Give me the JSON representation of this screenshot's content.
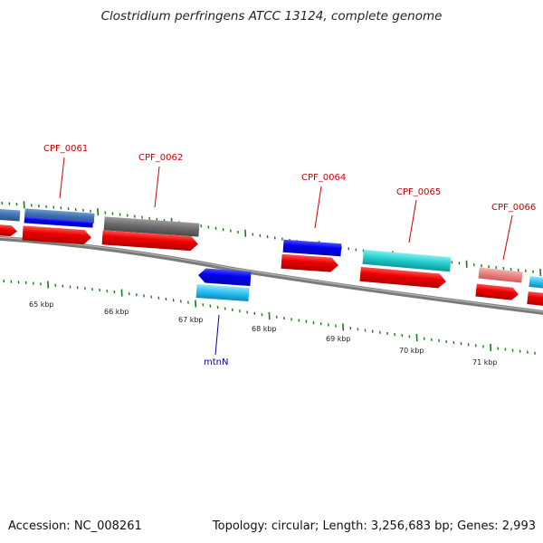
{
  "title": "Clostridium perfringens ATCC 13124, complete genome",
  "footer": {
    "accession": "Accession: NC_008261",
    "summary": "Topology: circular; Length: 3,256,683 bp; Genes: 2,993"
  },
  "colors": {
    "backbone": "#808080",
    "tick": "#1a7a1a",
    "cds_red": "#e60000",
    "label_red": "#cc0000",
    "label_blue": "#0000aa"
  },
  "scale": {
    "labels": [
      "65 kbp",
      "66 kbp",
      "67 kbp",
      "68 kbp",
      "69 kbp",
      "70 kbp",
      "71 kbp"
    ]
  },
  "gene_labels": [
    {
      "name": "CPF_0061",
      "color": "#cc0000"
    },
    {
      "name": "CPF_0062",
      "color": "#cc0000"
    },
    {
      "name": "CPF_0064",
      "color": "#cc0000"
    },
    {
      "name": "CPF_0065",
      "color": "#cc0000"
    },
    {
      "name": "CPF_0066",
      "color": "#cc0000"
    },
    {
      "name": "mtnN",
      "color": "#0000aa"
    }
  ]
}
